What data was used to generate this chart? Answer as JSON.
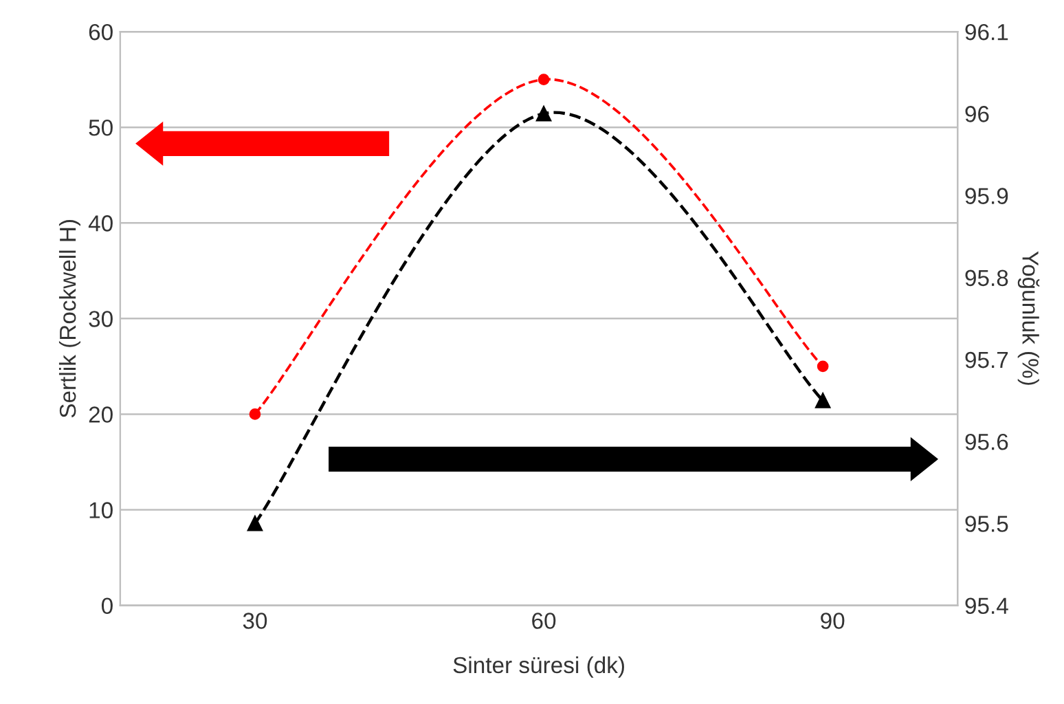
{
  "chart_data": {
    "type": "line",
    "xlabel": "Sinter süresi (dk)",
    "ylabel": "Sertlik (Rockwell H)",
    "y2label": "Yoğunluk (%)",
    "xlim": [
      16,
      103
    ],
    "xticks": [
      30,
      60,
      90
    ],
    "ylim": [
      0,
      60
    ],
    "yticks": [
      0,
      10,
      20,
      30,
      40,
      50,
      60
    ],
    "y2lim": [
      95.4,
      96.1
    ],
    "y2ticks": [
      95.4,
      95.5,
      95.6,
      95.7,
      95.8,
      95.9,
      96,
      96.1
    ],
    "grid": "y",
    "line_style": "dashed",
    "series": [
      {
        "color": "#ff0000",
        "marker": "circle",
        "x": [
          30,
          60,
          89
        ],
        "values": [
          20,
          55,
          25
        ]
      },
      {
        "color": "#000000",
        "marker": "triangle",
        "axis": "y2",
        "x": [
          30,
          60,
          89
        ],
        "values": [
          95.5,
          96.0,
          95.65
        ]
      }
    ]
  }
}
